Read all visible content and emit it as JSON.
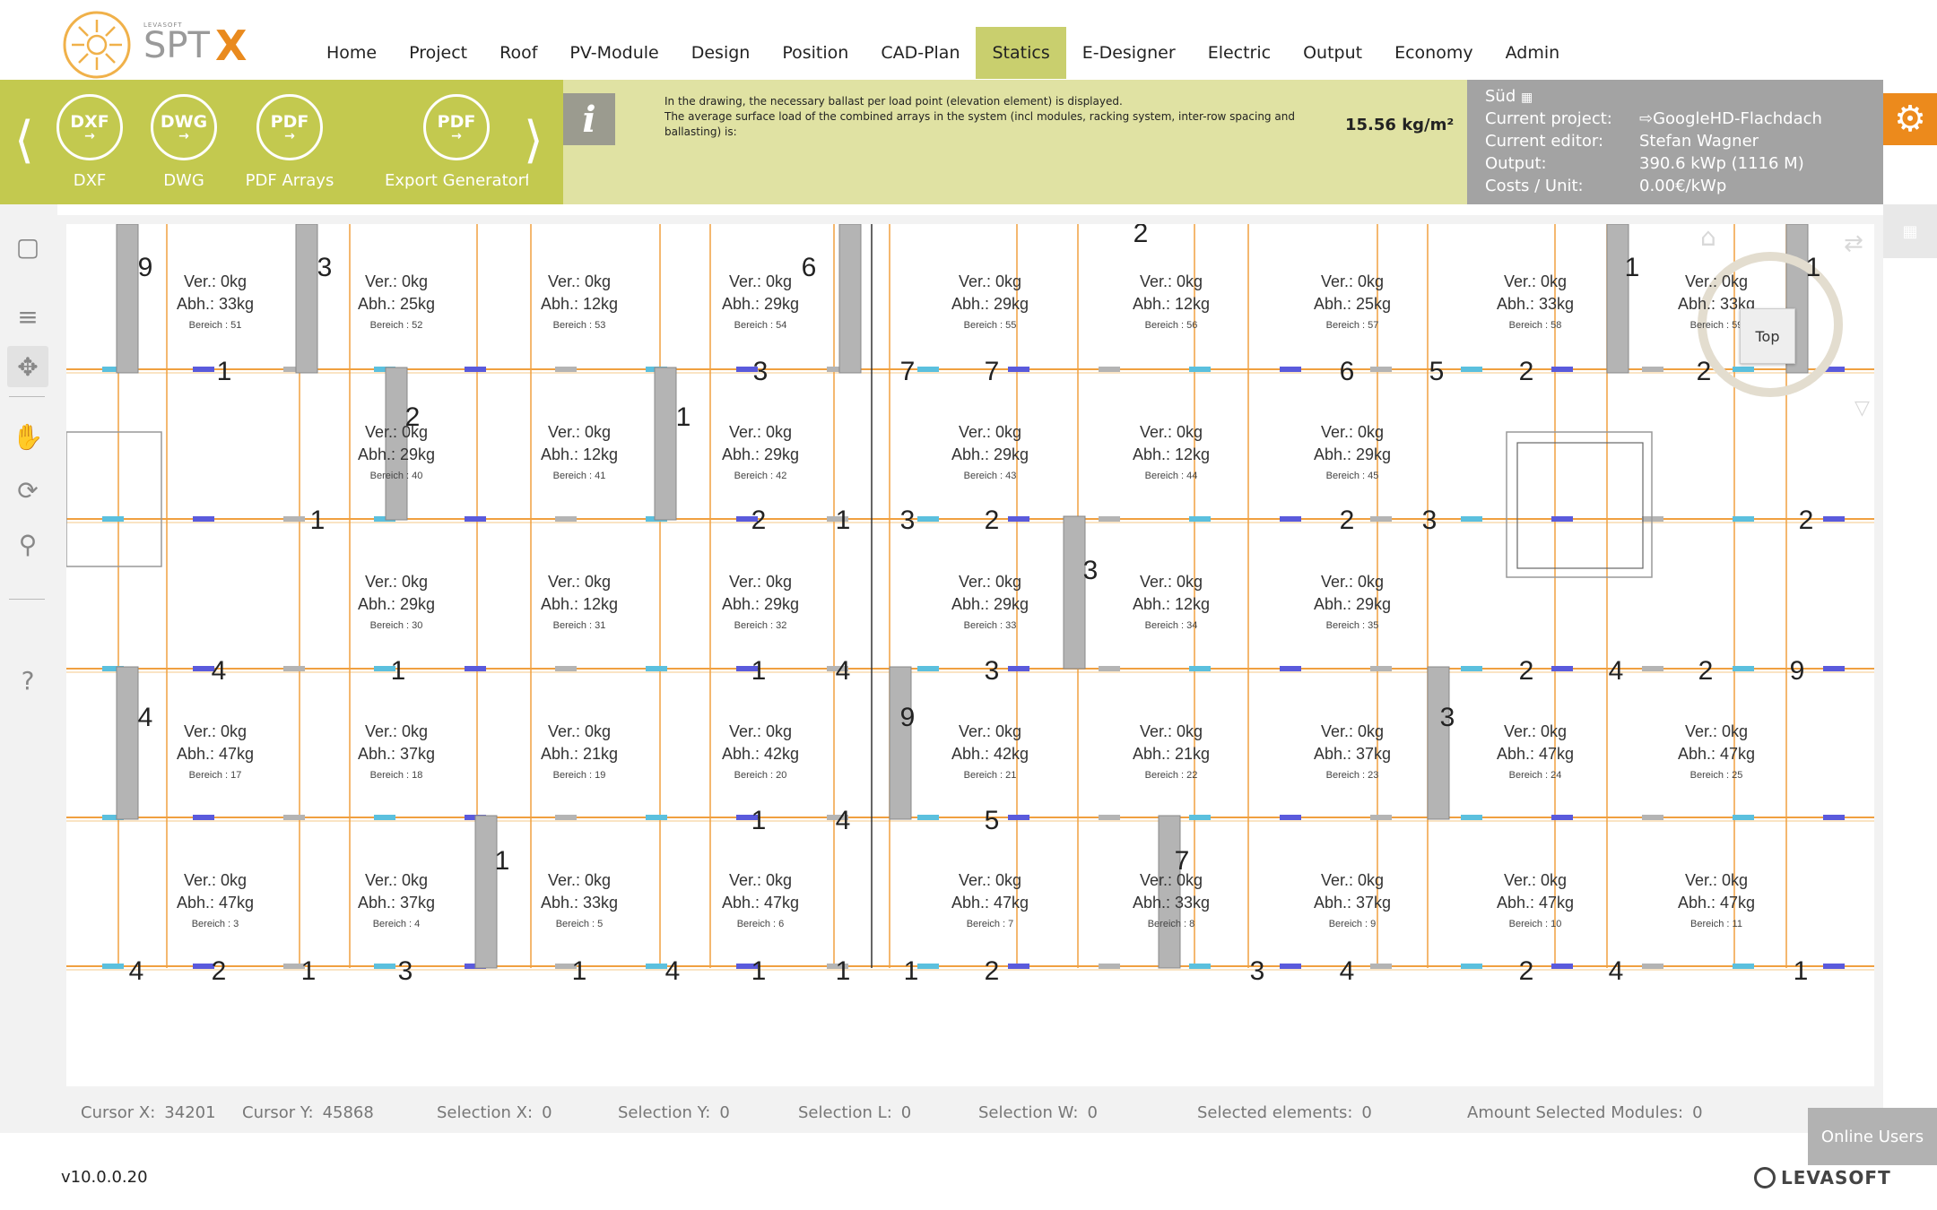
{
  "app": {
    "logo_small": "LEVASOFT",
    "logo_main": "SPT",
    "logo_x": "X",
    "version": "v10.0.0.20",
    "brand": "LEVASOFT",
    "online_users": "Online Users"
  },
  "nav": {
    "items": [
      "Home",
      "Project",
      "Roof",
      "PV-Module",
      "Design",
      "Position",
      "CAD-Plan",
      "Statics",
      "E-Designer",
      "Electric",
      "Output",
      "Economy",
      "Admin"
    ],
    "active": "Statics"
  },
  "toolbar": {
    "tools": [
      {
        "icon": "DXF",
        "label": "DXF"
      },
      {
        "icon": "DWG",
        "label": "DWG"
      },
      {
        "icon": "PDF",
        "label": "PDF Arrays"
      },
      {
        "icon": "PDF",
        "label": "Export Generatorfl"
      }
    ]
  },
  "info": {
    "line1": "In the drawing, the necessary ballast per load point (elevation element) is displayed.",
    "line2": "The average surface load of the combined arrays in the system (incl modules, racking system, inter-row spacing and ballasting) is:",
    "value": "15.56 kg/m²"
  },
  "project": {
    "orientation": "Süd",
    "current_project_label": "Current project:",
    "current_project": "GoogleHD-Flachdach",
    "editor_label": "Current editor:",
    "editor": "Stefan Wagner",
    "output_label": "Output:",
    "output": "390.6 kWp (1116 M)",
    "costs_label": "Costs / Unit:",
    "costs": "0.00€/kWp"
  },
  "canvas": {
    "compass_top": "Top",
    "cells": [
      {
        "ver": "Ver.: 0kg",
        "abh": "Abh.: 33kg",
        "ber": "Bereich : 51"
      },
      {
        "ver": "Ver.: 0kg",
        "abh": "Abh.: 25kg",
        "ber": "Bereich : 52"
      },
      {
        "ver": "Ver.: 0kg",
        "abh": "Abh.: 12kg",
        "ber": "Bereich : 53"
      },
      {
        "ver": "Ver.: 0kg",
        "abh": "Abh.: 29kg",
        "ber": "Bereich : 54"
      },
      {
        "ver": "Ver.: 0kg",
        "abh": "Abh.: 29kg",
        "ber": "Bereich : 55"
      },
      {
        "ver": "Ver.: 0kg",
        "abh": "Abh.: 12kg",
        "ber": "Bereich : 56"
      },
      {
        "ver": "Ver.: 0kg",
        "abh": "Abh.: 25kg",
        "ber": "Bereich : 57"
      },
      {
        "ver": "Ver.: 0kg",
        "abh": "Abh.: 33kg",
        "ber": "Bereich : 58"
      },
      {
        "ver": "Ver.: 0kg",
        "abh": "Abh.: 33kg",
        "ber": "Bereich : 59"
      },
      {
        "ver": "Ver.: 0kg",
        "abh": "Abh.: 29kg",
        "ber": "Bereich : 40"
      },
      {
        "ver": "Ver.: 0kg",
        "abh": "Abh.: 12kg",
        "ber": "Bereich : 41"
      },
      {
        "ver": "Ver.: 0kg",
        "abh": "Abh.: 29kg",
        "ber": "Bereich : 42"
      },
      {
        "ver": "Ver.: 0kg",
        "abh": "Abh.: 29kg",
        "ber": "Bereich : 43"
      },
      {
        "ver": "Ver.: 0kg",
        "abh": "Abh.: 12kg",
        "ber": "Bereich : 44"
      },
      {
        "ver": "Ver.: 0kg",
        "abh": "Abh.: 29kg",
        "ber": "Bereich : 45"
      },
      {
        "ver": "Ver.: 0kg",
        "abh": "Abh.: 29kg",
        "ber": "Bereich : 30"
      },
      {
        "ver": "Ver.: 0kg",
        "abh": "Abh.: 12kg",
        "ber": "Bereich : 31"
      },
      {
        "ver": "Ver.: 0kg",
        "abh": "Abh.: 29kg",
        "ber": "Bereich : 32"
      },
      {
        "ver": "Ver.: 0kg",
        "abh": "Abh.: 29kg",
        "ber": "Bereich : 33"
      },
      {
        "ver": "Ver.: 0kg",
        "abh": "Abh.: 12kg",
        "ber": "Bereich : 34"
      },
      {
        "ver": "Ver.: 0kg",
        "abh": "Abh.: 29kg",
        "ber": "Bereich : 35"
      },
      {
        "ver": "Ver.: 0kg",
        "abh": "Abh.: 47kg",
        "ber": "Bereich : 17"
      },
      {
        "ver": "Ver.: 0kg",
        "abh": "Abh.: 37kg",
        "ber": "Bereich : 18"
      },
      {
        "ver": "Ver.: 0kg",
        "abh": "Abh.: 21kg",
        "ber": "Bereich : 19"
      },
      {
        "ver": "Ver.: 0kg",
        "abh": "Abh.: 42kg",
        "ber": "Bereich : 20"
      },
      {
        "ver": "Ver.: 0kg",
        "abh": "Abh.: 42kg",
        "ber": "Bereich : 21"
      },
      {
        "ver": "Ver.: 0kg",
        "abh": "Abh.: 21kg",
        "ber": "Bereich : 22"
      },
      {
        "ver": "Ver.: 0kg",
        "abh": "Abh.: 37kg",
        "ber": "Bereich : 23"
      },
      {
        "ver": "Ver.: 0kg",
        "abh": "Abh.: 47kg",
        "ber": "Bereich : 24"
      },
      {
        "ver": "Ver.: 0kg",
        "abh": "Abh.: 47kg",
        "ber": "Bereich : 25"
      },
      {
        "ver": "Ver.: 0kg",
        "abh": "Abh.: 47kg",
        "ber": "Bereich : 3"
      },
      {
        "ver": "Ver.: 0kg",
        "abh": "Abh.: 37kg",
        "ber": "Bereich : 4"
      },
      {
        "ver": "Ver.: 0kg",
        "abh": "Abh.: 33kg",
        "ber": "Bereich : 5"
      },
      {
        "ver": "Ver.: 0kg",
        "abh": "Abh.: 47kg",
        "ber": "Bereich : 6"
      },
      {
        "ver": "Ver.: 0kg",
        "abh": "Abh.: 47kg",
        "ber": "Bereich : 7"
      },
      {
        "ver": "Ver.: 0kg",
        "abh": "Abh.: 33kg",
        "ber": "Bereich : 8"
      },
      {
        "ver": "Ver.: 0kg",
        "abh": "Abh.: 37kg",
        "ber": "Bereich : 9"
      },
      {
        "ver": "Ver.: 0kg",
        "abh": "Abh.: 47kg",
        "ber": "Bereich : 10"
      },
      {
        "ver": "Ver.: 0kg",
        "abh": "Abh.: 47kg",
        "ber": "Bereich : 11"
      }
    ],
    "ballast_numbers": [
      "9",
      "3",
      "6",
      "1",
      "1",
      "2",
      "1",
      "3",
      "2",
      "1",
      "3",
      "7",
      "7",
      "6",
      "5",
      "2",
      "2",
      "1",
      "2",
      "1",
      "3",
      "2",
      "2",
      "3",
      "2",
      "4",
      "1",
      "1",
      "4",
      "3",
      "2",
      "4",
      "2",
      "9",
      "4",
      "9",
      "3",
      "1",
      "4",
      "5",
      "7",
      "1",
      "4",
      "2",
      "1",
      "3",
      "1",
      "4",
      "1",
      "1",
      "1",
      "2",
      "3",
      "4",
      "2",
      "4",
      "1"
    ]
  },
  "status": {
    "cursor_x_label": "Cursor X:",
    "cursor_x": "34201",
    "cursor_y_label": "Cursor Y:",
    "cursor_y": "45868",
    "sel_x_label": "Selection X:",
    "sel_x": "0",
    "sel_y_label": "Selection Y:",
    "sel_y": "0",
    "sel_l_label": "Selection L:",
    "sel_l": "0",
    "sel_w_label": "Selection W:",
    "sel_w": "0",
    "sel_el_label": "Selected elements:",
    "sel_el": "0",
    "amount_label": "Amount Selected Modules:",
    "amount": "0"
  },
  "colors": {
    "band_green": "#c3c94f",
    "band_info": "#e0e2a3",
    "band_gray": "#a3a3a3",
    "accent_orange": "#ec8a1c",
    "rail_orange": "#f0a040",
    "rail_cyan": "#5bc0de",
    "rail_blue": "#5a5adc",
    "ballast_gray": "#b4b4b4"
  }
}
